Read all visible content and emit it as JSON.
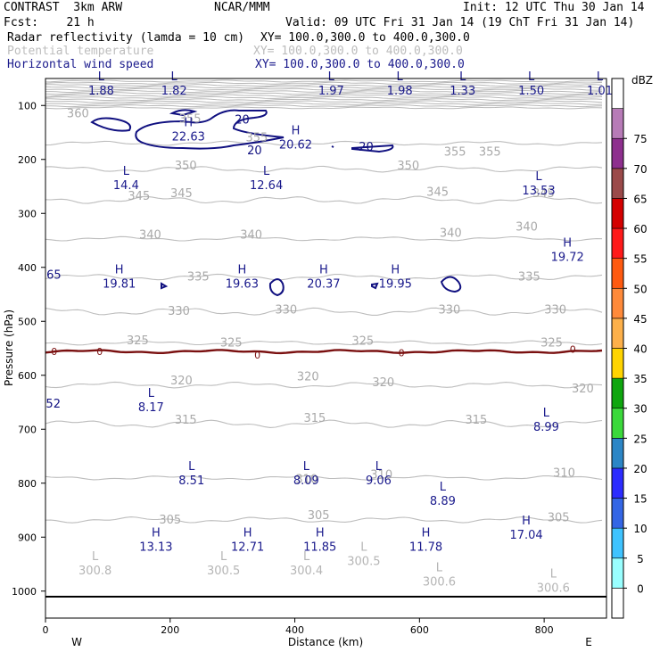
{
  "header": {
    "model": "CONTRAST  3km ARW",
    "org": "NCAR/MMM",
    "init": "Init: 12 UTC Thu 30 Jan 14",
    "fcst": "Fcst:    21 h",
    "valid": "Valid: 09 UTC Fri 31 Jan 14 (19 ChT Fri 31 Jan 14)",
    "field1_name": "Radar reflectivity (lamda = 10 cm)",
    "field1_xy": "XY= 100.0,300.0 to 400.0,300.0",
    "field2_name": "Potential temperature",
    "field2_xy": "XY= 100.0,300.0 to 400.0,300.0",
    "field3_name": "Horizontal wind speed",
    "field3_xy": "XY= 100.0,300.0 to 400.0,300.0"
  },
  "chart_data": {
    "type": "cross-section contour",
    "xlabel": "Distance (km)",
    "ylabel": "Pressure (hPa)",
    "xlim": [
      0,
      900
    ],
    "ylim": [
      1050,
      50
    ],
    "x_ticks": [
      0,
      200,
      400,
      600,
      800
    ],
    "y_ticks": [
      100,
      200,
      300,
      400,
      500,
      600,
      700,
      800,
      900,
      1000
    ],
    "x_end_labels": {
      "left": "W",
      "right": "E"
    },
    "theta_contours": [
      {
        "value": 355,
        "p": 170
      },
      {
        "value": 350,
        "p": 218
      },
      {
        "value": 345,
        "p": 275
      },
      {
        "value": 340,
        "p": 347
      },
      {
        "value": 335,
        "p": 418
      },
      {
        "value": 330,
        "p": 482
      },
      {
        "value": 325,
        "p": 540
      },
      {
        "value": 320,
        "p": 618
      },
      {
        "value": 315,
        "p": 690
      },
      {
        "value": 310,
        "p": 790
      },
      {
        "value": 305,
        "p": 868
      }
    ],
    "theta_labels": [
      {
        "text": "360",
        "x": 52,
        "p": 115
      },
      {
        "text": "355",
        "x": 232,
        "p": 125
      },
      {
        "text": "355",
        "x": 339,
        "p": 160
      },
      {
        "text": "355",
        "x": 657,
        "p": 186
      },
      {
        "text": "355",
        "x": 713,
        "p": 186
      },
      {
        "text": "350",
        "x": 225,
        "p": 212
      },
      {
        "text": "350",
        "x": 582,
        "p": 212
      },
      {
        "text": "345",
        "x": 150,
        "p": 268
      },
      {
        "text": "345",
        "x": 218,
        "p": 263
      },
      {
        "text": "345",
        "x": 629,
        "p": 261
      },
      {
        "text": "345",
        "x": 799,
        "p": 263
      },
      {
        "text": "340",
        "x": 168,
        "p": 340
      },
      {
        "text": "340",
        "x": 330,
        "p": 340
      },
      {
        "text": "340",
        "x": 650,
        "p": 337
      },
      {
        "text": "340",
        "x": 772,
        "p": 325
      },
      {
        "text": "335",
        "x": 245,
        "p": 418
      },
      {
        "text": "335",
        "x": 776,
        "p": 418
      },
      {
        "text": "330",
        "x": 214,
        "p": 481
      },
      {
        "text": "330",
        "x": 386,
        "p": 479
      },
      {
        "text": "330",
        "x": 648,
        "p": 479
      },
      {
        "text": "330",
        "x": 818,
        "p": 479
      },
      {
        "text": "325",
        "x": 148,
        "p": 536
      },
      {
        "text": "325",
        "x": 298,
        "p": 540
      },
      {
        "text": "325",
        "x": 509,
        "p": 537
      },
      {
        "text": "325",
        "x": 812,
        "p": 540
      },
      {
        "text": "320",
        "x": 218,
        "p": 610
      },
      {
        "text": "320",
        "x": 421,
        "p": 603
      },
      {
        "text": "320",
        "x": 542,
        "p": 614
      },
      {
        "text": "320",
        "x": 862,
        "p": 625
      },
      {
        "text": "315",
        "x": 225,
        "p": 683
      },
      {
        "text": "315",
        "x": 432,
        "p": 680
      },
      {
        "text": "315",
        "x": 691,
        "p": 683
      },
      {
        "text": "310",
        "x": 419,
        "p": 793
      },
      {
        "text": "310",
        "x": 539,
        "p": 785
      },
      {
        "text": "310",
        "x": 832,
        "p": 781
      },
      {
        "text": "305",
        "x": 200,
        "p": 868
      },
      {
        "text": "305",
        "x": 438,
        "p": 860
      },
      {
        "text": "305",
        "x": 823,
        "p": 864
      }
    ],
    "theta_points": [
      {
        "type": "L",
        "value": "300.8",
        "x": 51,
        "p": 962
      },
      {
        "type": "L",
        "value": "300.5",
        "x": 257,
        "p": 962
      },
      {
        "type": "L",
        "value": "300.4",
        "x": 390,
        "p": 962
      },
      {
        "type": "L",
        "value": "300.5",
        "x": 482,
        "p": 945
      },
      {
        "type": "L",
        "value": "300.6",
        "x": 603,
        "p": 983
      },
      {
        "type": "L",
        "value": "300.6",
        "x": 786,
        "p": 995
      }
    ],
    "wind_speed_extrema": [
      {
        "type": "L",
        "value": "1.88",
        "x": 75,
        "p": 65
      },
      {
        "type": "L",
        "value": "1.82",
        "x": 192,
        "p": 65
      },
      {
        "type": "L",
        "value": "1.97",
        "x": 444,
        "p": 65
      },
      {
        "type": "L",
        "value": "1.98",
        "x": 554,
        "p": 65
      },
      {
        "type": "L",
        "value": "1.33",
        "x": 655,
        "p": 65
      },
      {
        "type": "L",
        "value": "1.50",
        "x": 765,
        "p": 65
      },
      {
        "type": "L",
        "value": "1.01",
        "x": 875,
        "p": 65
      },
      {
        "type": "H",
        "value": "22.63",
        "x": 215,
        "p": 150
      },
      {
        "type": "H",
        "value": "20.62",
        "x": 387,
        "p": 165
      },
      {
        "type": "L",
        "value": "14.4",
        "x": 115,
        "p": 240
      },
      {
        "type": "L",
        "value": "12.64",
        "x": 340,
        "p": 240
      },
      {
        "type": "L",
        "value": "13.53",
        "x": 777,
        "p": 250
      },
      {
        "type": "H",
        "value": "19.72",
        "x": 823,
        "p": 373
      },
      {
        "type": "H",
        "value": "19.81",
        "x": 104,
        "p": 423
      },
      {
        "type": "H",
        "value": "19.63",
        "x": 301,
        "p": 423
      },
      {
        "type": "H",
        "value": "20.37",
        "x": 432,
        "p": 423
      },
      {
        "type": "H",
        "value": "19.95",
        "x": 547,
        "p": 423
      },
      {
        "type": "L",
        "value": "8.17",
        "x": 155,
        "p": 652
      },
      {
        "type": "L",
        "value": "8.99",
        "x": 789,
        "p": 688
      },
      {
        "type": "L",
        "value": "8.51",
        "x": 220,
        "p": 787
      },
      {
        "type": "L",
        "value": "8.09",
        "x": 404,
        "p": 787
      },
      {
        "type": "L",
        "value": "9.06",
        "x": 520,
        "p": 787
      },
      {
        "type": "L",
        "value": "8.89",
        "x": 623,
        "p": 825
      },
      {
        "type": "H",
        "value": "17.04",
        "x": 757,
        "p": 888
      },
      {
        "type": "H",
        "value": "13.13",
        "x": 163,
        "p": 910
      },
      {
        "type": "H",
        "value": "12.71",
        "x": 310,
        "p": 910
      },
      {
        "type": "H",
        "value": "11.85",
        "x": 426,
        "p": 910
      },
      {
        "type": "H",
        "value": "11.78",
        "x": 596,
        "p": 910
      }
    ],
    "wind_contour_labels": [
      {
        "text": "20",
        "x": 304,
        "p": 125
      },
      {
        "text": "20",
        "x": 324,
        "p": 182
      },
      {
        "text": "20",
        "x": 503,
        "p": 176
      },
      {
        "text": "65",
        "x": 2,
        "p": 413
      },
      {
        "text": "52",
        "x": 1,
        "p": 652
      }
    ],
    "zero_line_labels": [
      {
        "text": "0",
        "x": 14,
        "p": 556
      },
      {
        "text": "0",
        "x": 87,
        "p": 556
      },
      {
        "text": "0",
        "x": 340,
        "p": 562
      },
      {
        "text": "0",
        "x": 571,
        "p": 558
      },
      {
        "text": "0",
        "x": 846,
        "p": 552
      }
    ],
    "colorbar": {
      "unit": "dBZ",
      "levels": [
        "0",
        "5",
        "10",
        "15",
        "20",
        "25",
        "30",
        "35",
        "40",
        "45",
        "50",
        "55",
        "60",
        "65",
        "70",
        "75"
      ],
      "colors": [
        "#ffffff",
        "#99ffff",
        "#3fc3ff",
        "#3466e5",
        "#2c2cff",
        "#2c86c6",
        "#3bd93b",
        "#0ea60e",
        "#ffd400",
        "#fdb04a",
        "#ff8a3a",
        "#ff5a10",
        "#ff1a1a",
        "#d40000",
        "#9b4a4a",
        "#8e2f8e",
        "#b77bb7",
        "#ffffff"
      ]
    }
  }
}
